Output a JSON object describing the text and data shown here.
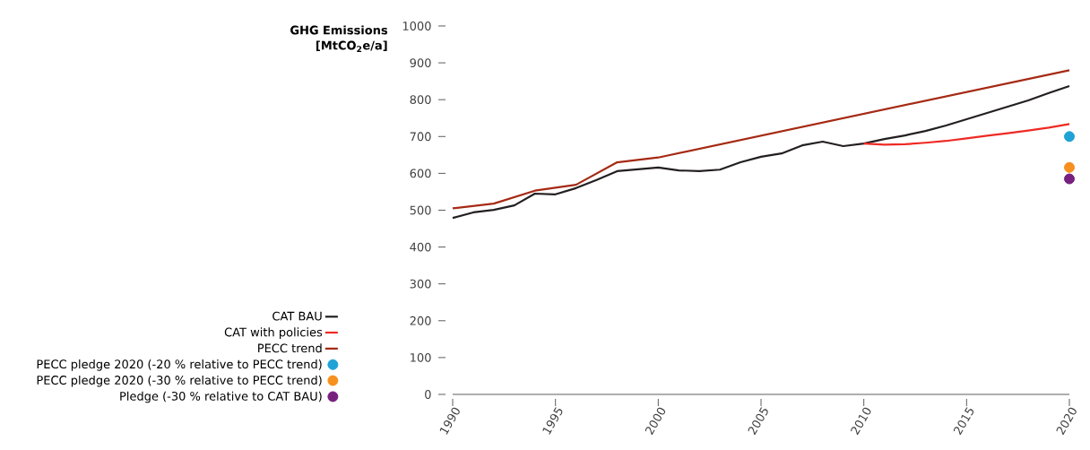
{
  "chart_data": {
    "type": "line",
    "ylabel": "GHG Emissions [MtCO$_{2}$e/a]",
    "xlim": [
      1990,
      2020
    ],
    "xticks": [
      1990,
      1995,
      2000,
      2005,
      2010,
      2015,
      2020
    ],
    "ylim": [
      0,
      1000
    ],
    "yticks": [
      0,
      100,
      200,
      300,
      400,
      500,
      600,
      700,
      800,
      900,
      1000
    ],
    "grid": false,
    "legend": "bottom left",
    "line_style": "solid",
    "series": [
      {
        "name": "CAT BAU",
        "color": "#231f20",
        "x": [
          1990,
          1991,
          1992,
          1993,
          1994,
          1995,
          1996,
          1997,
          1998,
          1999,
          2000,
          2001,
          2002,
          2003,
          2004,
          2005,
          2006,
          2007,
          2008,
          2009,
          2010,
          2011,
          2012,
          2013,
          2014,
          2015,
          2016,
          2017,
          2018,
          2019,
          2020
        ],
        "values": [
          479,
          494,
          501,
          513,
          545,
          543,
          560,
          582,
          606,
          611,
          616,
          608,
          606,
          610,
          630,
          645,
          654,
          676,
          686,
          674,
          681,
          693,
          703,
          715,
          730,
          747,
          764,
          781,
          798,
          818,
          837
        ]
      },
      {
        "name": "CAT with policies",
        "color": "#ee2a24",
        "x": [
          2010,
          2011,
          2012,
          2013,
          2014,
          2015,
          2016,
          2017,
          2018,
          2019,
          2020
        ],
        "values": [
          681,
          678,
          679,
          683,
          688,
          695,
          702,
          709,
          716,
          724,
          734
        ]
      },
      {
        "name": "PECC trend",
        "color": "#a52a14",
        "x": [
          1990,
          1992,
          1994,
          1996,
          1998,
          2000,
          2020
        ],
        "values": [
          505,
          518,
          553,
          569,
          630,
          643,
          880
        ]
      },
      {
        "name": "PECC pledge 2020 (-20 % relative to PECC trend)",
        "type": "scatter",
        "color": "#1fa2d6",
        "x": [
          2020
        ],
        "values": [
          700
        ]
      },
      {
        "name": "PECC pledge 2020 (-30 % relative to PECC trend)",
        "type": "scatter",
        "color": "#f7901e",
        "x": [
          2020
        ],
        "values": [
          616
        ]
      },
      {
        "name": "Pledge (-30 % relative to CAT BAU)",
        "type": "scatter",
        "color": "#77207f",
        "x": [
          2020
        ],
        "values": [
          585
        ]
      }
    ]
  }
}
